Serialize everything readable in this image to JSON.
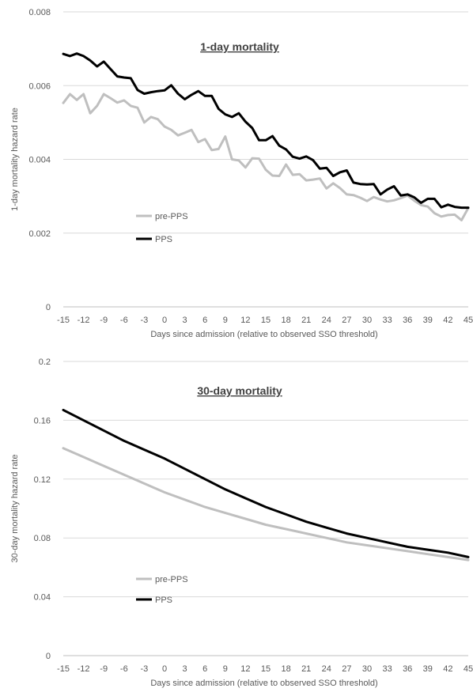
{
  "chart_data": [
    {
      "type": "line",
      "title": "1-day mortality",
      "xlabel": "Days since admission (relative to observed SSO threshold)",
      "ylabel": "1-day mortality hazard rate",
      "xlim": [
        -15,
        45
      ],
      "ylim": [
        0,
        0.008
      ],
      "x_ticks": [
        "-15",
        "-12",
        "-9",
        "-6",
        "-3",
        "0",
        "3",
        "6",
        "9",
        "12",
        "15",
        "18",
        "21",
        "24",
        "27",
        "30",
        "33",
        "36",
        "39",
        "42",
        "45"
      ],
      "y_ticks": [
        "0",
        "0.002",
        "0.004",
        "0.006",
        "0.008"
      ],
      "grid": true,
      "legend": "center-left",
      "x": [
        -15,
        -14,
        -13,
        -12,
        -11,
        -10,
        -9,
        -8,
        -7,
        -6,
        -5,
        -4,
        -3,
        -2,
        -1,
        0,
        1,
        2,
        3,
        4,
        5,
        6,
        7,
        8,
        9,
        10,
        11,
        12,
        13,
        14,
        15,
        16,
        17,
        18,
        19,
        20,
        21,
        22,
        23,
        24,
        25,
        26,
        27,
        28,
        29,
        30,
        31,
        32,
        33,
        34,
        35,
        36,
        37,
        38,
        39,
        40,
        41,
        42,
        43,
        44,
        45
      ],
      "series": [
        {
          "name": "pre-PPS",
          "color": "#bfbfbf",
          "values": [
            0.00553,
            0.00577,
            0.00561,
            0.00577,
            0.00525,
            0.00545,
            0.00577,
            0.00566,
            0.00554,
            0.0056,
            0.00545,
            0.0054,
            0.005,
            0.00515,
            0.00509,
            0.00489,
            0.0048,
            0.00465,
            0.00472,
            0.0048,
            0.00447,
            0.00455,
            0.00425,
            0.00428,
            0.00462,
            0.004,
            0.00397,
            0.00378,
            0.00403,
            0.00402,
            0.00372,
            0.00356,
            0.00355,
            0.00386,
            0.00358,
            0.0036,
            0.00343,
            0.00345,
            0.00348,
            0.00321,
            0.00335,
            0.00322,
            0.00305,
            0.00303,
            0.00296,
            0.00287,
            0.00298,
            0.00291,
            0.00286,
            0.00289,
            0.00295,
            0.00302,
            0.00288,
            0.00276,
            0.00272,
            0.00254,
            0.00245,
            0.00249,
            0.0025,
            0.00235,
            0.00268
          ]
        },
        {
          "name": "PPS",
          "color": "#000000",
          "values": [
            0.00686,
            0.0068,
            0.00687,
            0.0068,
            0.00668,
            0.00652,
            0.00665,
            0.00645,
            0.00625,
            0.00622,
            0.0062,
            0.00588,
            0.00578,
            0.00582,
            0.00585,
            0.00587,
            0.00601,
            0.00578,
            0.00563,
            0.00575,
            0.00585,
            0.00572,
            0.00572,
            0.00537,
            0.00522,
            0.00515,
            0.00525,
            0.00502,
            0.00485,
            0.00452,
            0.00452,
            0.00463,
            0.00437,
            0.00427,
            0.00407,
            0.00402,
            0.00408,
            0.00398,
            0.00375,
            0.00377,
            0.00355,
            0.00365,
            0.0037,
            0.00337,
            0.00333,
            0.00332,
            0.00333,
            0.00305,
            0.00318,
            0.00327,
            0.00302,
            0.00305,
            0.00297,
            0.00282,
            0.00293,
            0.00293,
            0.0027,
            0.00277,
            0.00271,
            0.00269,
            0.00269
          ]
        }
      ]
    },
    {
      "type": "line",
      "title": "30-day mortality",
      "xlabel": "Days since admission (relative to observed SSO threshold)",
      "ylabel": "30-day mortality hazard rate",
      "xlim": [
        -15,
        45
      ],
      "ylim": [
        0,
        0.2
      ],
      "x_ticks": [
        "-15",
        "-12",
        "-9",
        "-6",
        "-3",
        "0",
        "3",
        "6",
        "9",
        "12",
        "15",
        "18",
        "21",
        "24",
        "27",
        "30",
        "33",
        "36",
        "39",
        "42",
        "45"
      ],
      "y_ticks": [
        "0",
        "0.04",
        "0.08",
        "0.12",
        "0.16",
        "0.2"
      ],
      "grid": true,
      "legend": "lower-left",
      "x": [
        -15,
        -12,
        -9,
        -6,
        -3,
        0,
        3,
        6,
        9,
        12,
        15,
        18,
        21,
        24,
        27,
        30,
        33,
        36,
        39,
        42,
        45
      ],
      "series": [
        {
          "name": "pre-PPS",
          "color": "#bfbfbf",
          "values": [
            0.141,
            0.135,
            0.129,
            0.123,
            0.117,
            0.111,
            0.106,
            0.101,
            0.097,
            0.093,
            0.089,
            0.086,
            0.083,
            0.08,
            0.077,
            0.075,
            0.073,
            0.071,
            0.069,
            0.067,
            0.065
          ]
        },
        {
          "name": "PPS",
          "color": "#000000",
          "values": [
            0.167,
            0.16,
            0.153,
            0.146,
            0.14,
            0.134,
            0.127,
            0.12,
            0.113,
            0.107,
            0.101,
            0.096,
            0.091,
            0.087,
            0.083,
            0.08,
            0.077,
            0.074,
            0.072,
            0.07,
            0.067
          ]
        }
      ]
    }
  ]
}
